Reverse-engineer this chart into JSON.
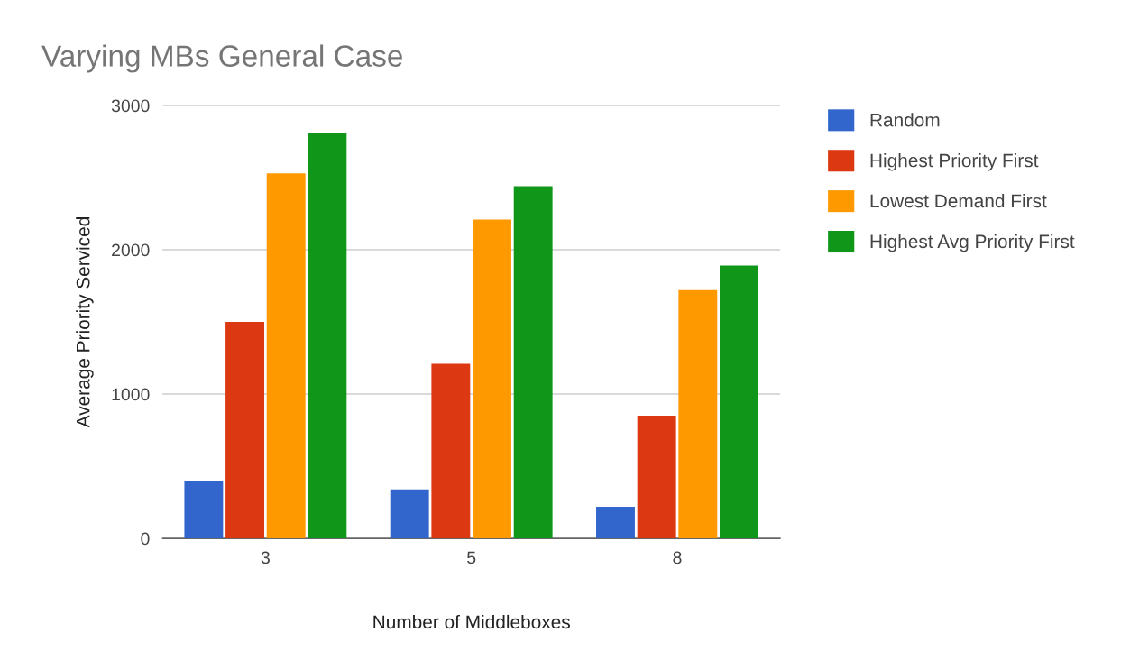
{
  "chart_data": {
    "type": "bar",
    "title": "Varying MBs General Case",
    "xlabel": "Number of Middleboxes",
    "ylabel": "Average Priority Serviced",
    "categories": [
      "3",
      "5",
      "8"
    ],
    "series": [
      {
        "name": "Random",
        "color": "#3366cc",
        "values": [
          400,
          340,
          220
        ]
      },
      {
        "name": "Highest Priority First",
        "color": "#dc3912",
        "values": [
          1500,
          1210,
          850
        ]
      },
      {
        "name": "Lowest Demand First",
        "color": "#ff9900",
        "values": [
          2530,
          2210,
          1720
        ]
      },
      {
        "name": "Highest Avg Priority First",
        "color": "#109618",
        "values": [
          2810,
          2440,
          1890
        ]
      }
    ],
    "ylim": [
      0,
      3000
    ],
    "yticks": [
      0,
      1000,
      2000,
      3000
    ],
    "grid": "y",
    "legend": "top right"
  }
}
